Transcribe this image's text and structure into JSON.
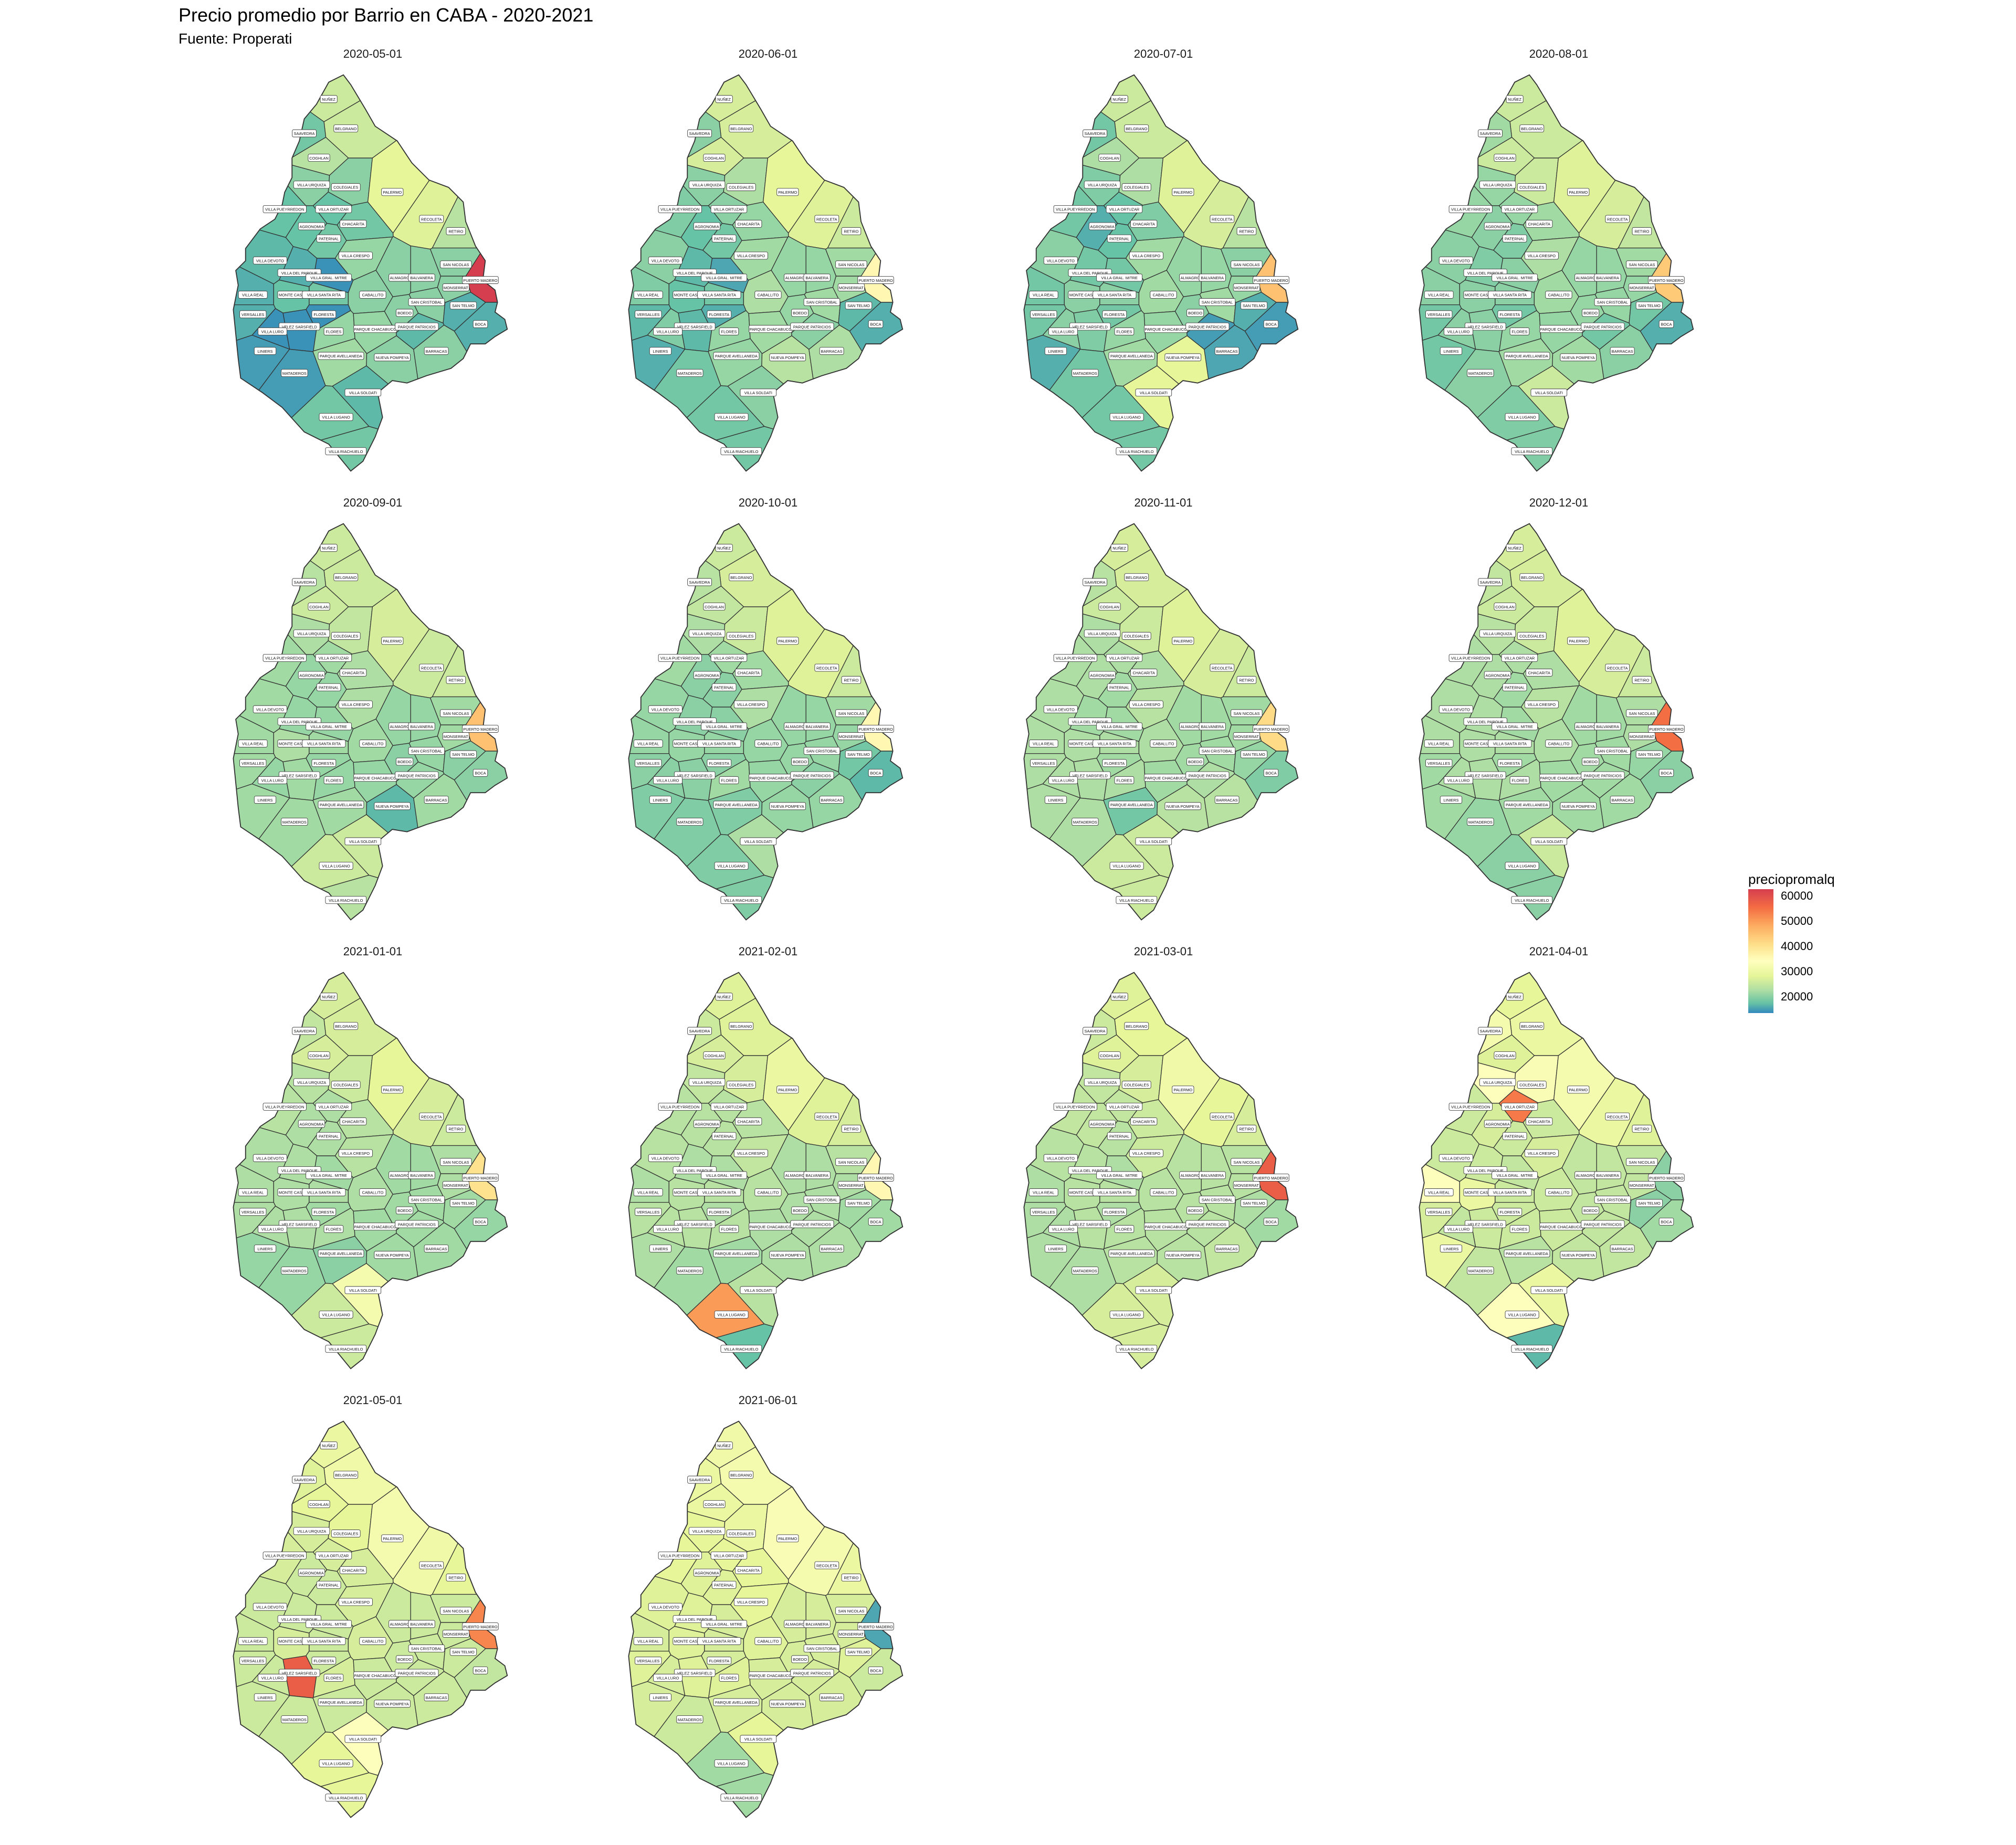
{
  "title": "Precio promedio por Barrio en CABA - 2020-2021",
  "subtitle": "Fuente: Properati",
  "legend": {
    "title": "preciopromalq",
    "ticks": [
      "60000",
      "50000",
      "40000",
      "30000",
      "20000"
    ],
    "colors": [
      "#d53e4f",
      "#f46d43",
      "#fdae61",
      "#fee08b",
      "#ffffbf",
      "#e6f598",
      "#abdda4",
      "#66c2a5",
      "#3288bd"
    ],
    "range": [
      15000,
      62000
    ]
  },
  "neighborhoods": [
    "NUÑEZ",
    "BELGRANO",
    "SAAVEDRA",
    "COGHLAN",
    "VILLA URQUIZA",
    "COLEGIALES",
    "PALERMO",
    "VILLA PUEYRREDON",
    "VILLA ORTUZAR",
    "CHACARITA",
    "RECOLETA",
    "RETIRO",
    "AGRONOMIA",
    "PATERNAL",
    "VILLA CRESPO",
    "VILLA DEVOTO",
    "VILLA DEL PARQUE",
    "SAN NICOLAS",
    "PUERTO MADERO",
    "VILLA GRAL. MITRE",
    "ALMAGRO",
    "BALVANERA",
    "MONSERRAT",
    "VILLA REAL",
    "MONTE CASTRO",
    "VILLA SANTA RITA",
    "CABALLITO",
    "SAN CRISTOBAL",
    "SAN TELMO",
    "VERSALLES",
    "FLORESTA",
    "VELEZ SARSFIELD",
    "BOEDO",
    "VILLA LURO",
    "FLORES",
    "PARQUE CHACABUCO",
    "PARQUE PATRICIOS",
    "BOCA",
    "LINIERS",
    "PARQUE AVELLANEDA",
    "NUEVA POMPEYA",
    "BARRACAS",
    "MATADEROS",
    "VILLA SOLDATI",
    "VILLA LUGANO",
    "VILLA RIACHUELO"
  ],
  "facets": [
    {
      "date": "2020-05-01",
      "values": [
        30000,
        30000,
        22000,
        28000,
        24000,
        24000,
        33000,
        21000,
        21000,
        22000,
        32000,
        28000,
        21000,
        22000,
        25000,
        20000,
        19000,
        24000,
        62000,
        16000,
        24000,
        24000,
        24000,
        19000,
        21000,
        22000,
        24000,
        24000,
        19000,
        19000,
        16000,
        16000,
        24000,
        16000,
        25000,
        25000,
        20000,
        19000,
        17000,
        26000,
        24000,
        24000,
        17000,
        20000,
        22000,
        22000
      ]
    },
    {
      "date": "2020-06-01",
      "values": [
        31000,
        31000,
        24000,
        31000,
        24000,
        27000,
        33000,
        23000,
        24000,
        25000,
        32000,
        30000,
        21000,
        22000,
        26000,
        24000,
        20000,
        26000,
        40000,
        18000,
        25000,
        25000,
        26000,
        23000,
        21000,
        22000,
        27000,
        26000,
        20000,
        20000,
        19000,
        20000,
        25000,
        23000,
        25000,
        26000,
        24000,
        19000,
        19000,
        25000,
        28000,
        27000,
        22000,
        24000,
        22000,
        22000
      ]
    },
    {
      "date": "2020-07-01",
      "values": [
        30000,
        30000,
        22000,
        27000,
        23000,
        27000,
        32000,
        22000,
        21000,
        23000,
        31000,
        28000,
        19000,
        21000,
        26000,
        24000,
        22000,
        24000,
        48000,
        22000,
        25000,
        25000,
        25000,
        22000,
        24000,
        24000,
        26000,
        26000,
        19000,
        22000,
        22000,
        23000,
        24000,
        24000,
        25000,
        25000,
        17000,
        17000,
        19000,
        26000,
        33000,
        18000,
        22000,
        33000,
        22000,
        22000
      ]
    },
    {
      "date": "2020-08-01",
      "values": [
        30000,
        30000,
        26000,
        30000,
        25000,
        30000,
        32000,
        25000,
        25000,
        26000,
        31000,
        29000,
        24000,
        23000,
        27000,
        24000,
        23000,
        26000,
        47000,
        24000,
        25000,
        25000,
        25000,
        24000,
        24000,
        24000,
        26000,
        25000,
        22000,
        22000,
        22000,
        24000,
        25000,
        24000,
        25000,
        25000,
        22000,
        19000,
        22000,
        26000,
        26000,
        24000,
        24000,
        30000,
        23000,
        23000
      ]
    },
    {
      "date": "2020-09-01",
      "values": [
        30000,
        30000,
        28000,
        30000,
        27000,
        29000,
        31000,
        26000,
        26000,
        27000,
        30000,
        30000,
        25000,
        25000,
        27000,
        26000,
        25000,
        26000,
        48000,
        25000,
        25000,
        25000,
        26000,
        26000,
        27000,
        26000,
        26000,
        25000,
        24000,
        26000,
        25000,
        26000,
        24000,
        25000,
        25000,
        25000,
        25000,
        24000,
        26000,
        26000,
        20000,
        26000,
        26000,
        30000,
        30000,
        28000
      ]
    },
    {
      "date": "2020-10-01",
      "values": [
        30000,
        31000,
        28000,
        29000,
        27000,
        30000,
        32000,
        26000,
        26000,
        26000,
        32000,
        30000,
        24000,
        24000,
        27000,
        25000,
        24000,
        26000,
        40000,
        24000,
        25000,
        25000,
        25000,
        25000,
        25000,
        25000,
        25000,
        25000,
        22000,
        24000,
        24000,
        24000,
        25000,
        24000,
        26000,
        25000,
        24000,
        20000,
        23000,
        23000,
        25000,
        25000,
        23000,
        27000,
        23000,
        23000
      ]
    },
    {
      "date": "2020-11-01",
      "values": [
        31000,
        31000,
        28000,
        30000,
        27000,
        30000,
        32000,
        27000,
        27000,
        27000,
        31000,
        30000,
        27000,
        26000,
        28000,
        27000,
        26000,
        26000,
        45000,
        26000,
        26000,
        26000,
        26000,
        27000,
        27000,
        27000,
        27000,
        26000,
        25000,
        27000,
        26000,
        27000,
        26000,
        27000,
        27000,
        26000,
        27000,
        23000,
        27000,
        22000,
        28000,
        28000,
        27000,
        30000,
        30000,
        30000
      ]
    },
    {
      "date": "2020-12-01",
      "values": [
        31000,
        31000,
        29000,
        30000,
        28000,
        30000,
        32000,
        27000,
        27000,
        27000,
        31000,
        30000,
        27000,
        26000,
        28000,
        27000,
        27000,
        27000,
        56000,
        26000,
        26000,
        26000,
        27000,
        27000,
        27000,
        27000,
        27000,
        26000,
        25000,
        26000,
        26000,
        27000,
        26000,
        27000,
        27000,
        26000,
        26000,
        24000,
        26000,
        26000,
        26000,
        26000,
        25000,
        30000,
        24000,
        24000
      ]
    },
    {
      "date": "2021-01-01",
      "values": [
        31000,
        31000,
        29000,
        31000,
        28000,
        30000,
        33000,
        28000,
        27000,
        28000,
        31000,
        30000,
        27000,
        27000,
        28000,
        27000,
        27000,
        27000,
        44000,
        26000,
        26000,
        26000,
        27000,
        27000,
        27000,
        27000,
        27000,
        26000,
        26000,
        27000,
        26000,
        27000,
        26000,
        27000,
        27000,
        26000,
        26000,
        25000,
        25000,
        24000,
        26000,
        26000,
        25000,
        36000,
        30000,
        30000
      ]
    },
    {
      "date": "2021-02-01",
      "values": [
        32000,
        32000,
        30000,
        31000,
        29000,
        31000,
        34000,
        28000,
        28000,
        28000,
        32000,
        31000,
        28000,
        28000,
        29000,
        28000,
        27000,
        28000,
        40000,
        27000,
        27000,
        27000,
        27000,
        27000,
        28000,
        28000,
        28000,
        27000,
        26000,
        28000,
        27000,
        28000,
        27000,
        28000,
        28000,
        27000,
        27000,
        26000,
        27000,
        26000,
        27000,
        27000,
        26000,
        28000,
        52000,
        21000
      ]
    },
    {
      "date": "2021-03-01",
      "values": [
        32000,
        33000,
        30000,
        32000,
        29000,
        31000,
        35000,
        29000,
        29000,
        30000,
        33000,
        31000,
        29000,
        28000,
        30000,
        28000,
        28000,
        28000,
        58000,
        27000,
        28000,
        28000,
        28000,
        27000,
        28000,
        28000,
        28000,
        28000,
        27000,
        27000,
        27000,
        28000,
        28000,
        27000,
        28000,
        28000,
        28000,
        26000,
        27000,
        28000,
        28000,
        29000,
        27000,
        31000,
        31000,
        31000
      ]
    },
    {
      "date": "2021-04-01",
      "values": [
        33000,
        34000,
        36000,
        32000,
        38000,
        37000,
        36000,
        30000,
        55000,
        30000,
        34000,
        32000,
        31000,
        30000,
        31000,
        30000,
        30000,
        29000,
        24000,
        29000,
        29000,
        29000,
        29000,
        38000,
        34000,
        30000,
        30000,
        29000,
        24000,
        31000,
        30000,
        30000,
        29000,
        29000,
        30000,
        30000,
        29000,
        26000,
        34000,
        28000,
        29000,
        29000,
        29000,
        34000,
        38000,
        20000
      ]
    },
    {
      "date": "2021-05-01",
      "values": [
        34000,
        35000,
        32000,
        33000,
        31000,
        33000,
        36000,
        31000,
        31000,
        31000,
        35000,
        33000,
        30000,
        30000,
        31000,
        30000,
        30000,
        30000,
        54000,
        30000,
        30000,
        30000,
        30000,
        30000,
        31000,
        30000,
        31000,
        30000,
        30000,
        30000,
        30000,
        58000,
        30000,
        30000,
        31000,
        30000,
        30000,
        29000,
        30000,
        30000,
        30000,
        30000,
        30000,
        38000,
        33000,
        33000
      ]
    },
    {
      "date": "2021-06-01",
      "values": [
        35000,
        36000,
        34000,
        34000,
        33000,
        34000,
        37000,
        33000,
        33000,
        33000,
        36000,
        34000,
        32000,
        32000,
        33000,
        32000,
        32000,
        31000,
        18000,
        31000,
        31000,
        31000,
        31000,
        31000,
        32000,
        31000,
        32000,
        31000,
        32000,
        32000,
        31000,
        32000,
        31000,
        31000,
        32000,
        31000,
        31000,
        30000,
        31000,
        31000,
        31000,
        31000,
        30000,
        33000,
        26000,
        26000
      ]
    }
  ]
}
